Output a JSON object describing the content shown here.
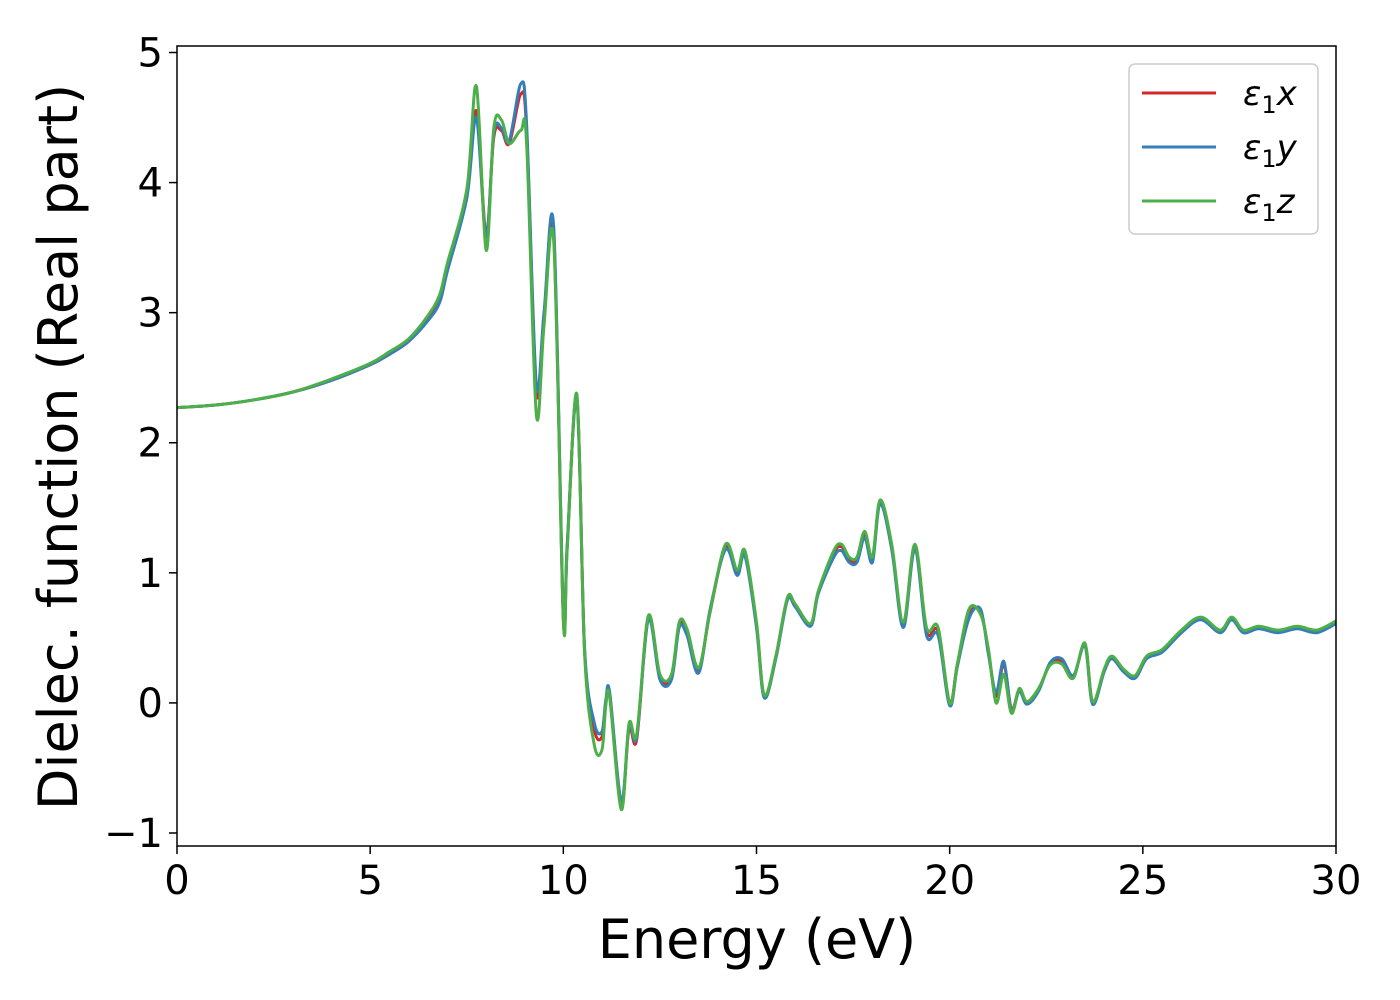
{
  "chart_data": {
    "type": "line",
    "xlabel": "Energy (eV)",
    "ylabel": "Dielec. function (Real part)",
    "xlim": [
      0,
      30
    ],
    "ylim": [
      -1.1,
      5.05
    ],
    "xticks": [
      "0",
      "5",
      "10",
      "15",
      "20",
      "25",
      "30"
    ],
    "yticks": [
      "−1",
      "0",
      "1",
      "2",
      "3",
      "4",
      "5"
    ],
    "grid": false,
    "legend_position": "top-right",
    "series": [
      {
        "name": "ε1x",
        "legend": {
          "base": "ε",
          "sub": "1",
          "var": "x"
        },
        "color": "#d62728",
        "x": [
          0,
          1,
          2,
          3,
          4,
          5,
          5.5,
          6,
          6.5,
          6.8,
          7.0,
          7.5,
          7.75,
          8.0,
          8.2,
          8.4,
          8.6,
          8.9,
          9.05,
          9.3,
          9.5,
          9.75,
          10.0,
          10.1,
          10.35,
          10.55,
          10.8,
          11.0,
          11.1,
          11.2,
          11.5,
          11.7,
          11.9,
          12.2,
          12.5,
          12.8,
          13.0,
          13.2,
          13.5,
          13.8,
          14.2,
          14.5,
          14.7,
          15.0,
          15.2,
          15.5,
          15.8,
          16.0,
          16.4,
          16.6,
          17.0,
          17.2,
          17.4,
          17.6,
          17.8,
          18.0,
          18.2,
          18.5,
          18.8,
          19.1,
          19.4,
          19.7,
          20.0,
          20.2,
          20.5,
          20.8,
          21.0,
          21.2,
          21.4,
          21.6,
          21.8,
          22.0,
          22.3,
          22.6,
          22.9,
          23.2,
          23.5,
          23.7,
          24.0,
          24.2,
          24.5,
          24.8,
          25.1,
          25.5,
          26.0,
          26.5,
          27.0,
          27.3,
          27.6,
          28.0,
          28.5,
          29.0,
          29.5,
          30.0
        ],
        "y": [
          2.27,
          2.29,
          2.33,
          2.39,
          2.48,
          2.6,
          2.68,
          2.78,
          2.95,
          3.1,
          3.34,
          3.9,
          4.55,
          3.6,
          4.35,
          4.4,
          4.3,
          4.68,
          4.4,
          2.4,
          2.95,
          3.6,
          0.65,
          1.2,
          2.35,
          0.4,
          -0.2,
          -0.26,
          0.0,
          0.06,
          -0.78,
          -0.2,
          -0.28,
          0.66,
          0.2,
          0.2,
          0.6,
          0.55,
          0.25,
          0.7,
          1.2,
          1.0,
          1.15,
          0.6,
          0.05,
          0.35,
          0.8,
          0.75,
          0.6,
          0.85,
          1.15,
          1.2,
          1.1,
          1.1,
          1.3,
          1.1,
          1.55,
          1.2,
          0.6,
          1.2,
          0.55,
          0.55,
          0.0,
          0.3,
          0.68,
          0.7,
          0.4,
          0.05,
          0.3,
          -0.05,
          0.1,
          0.0,
          0.1,
          0.3,
          0.32,
          0.2,
          0.45,
          0.0,
          0.25,
          0.35,
          0.25,
          0.2,
          0.35,
          0.4,
          0.55,
          0.65,
          0.55,
          0.65,
          0.55,
          0.58,
          0.55,
          0.58,
          0.55,
          0.62
        ]
      },
      {
        "name": "ε1y",
        "legend": {
          "base": "ε",
          "sub": "1",
          "var": "y"
        },
        "color": "#377eb8",
        "x": [
          0,
          1,
          2,
          3,
          4,
          5,
          5.5,
          6,
          6.5,
          6.8,
          7.0,
          7.5,
          7.75,
          8.0,
          8.2,
          8.4,
          8.6,
          8.9,
          9.05,
          9.3,
          9.5,
          9.75,
          10.0,
          10.1,
          10.35,
          10.55,
          10.8,
          11.0,
          11.1,
          11.2,
          11.5,
          11.7,
          11.9,
          12.2,
          12.5,
          12.8,
          13.0,
          13.2,
          13.5,
          13.8,
          14.2,
          14.5,
          14.7,
          15.0,
          15.2,
          15.5,
          15.8,
          16.0,
          16.4,
          16.6,
          17.0,
          17.2,
          17.4,
          17.6,
          17.8,
          18.0,
          18.2,
          18.5,
          18.8,
          19.1,
          19.4,
          19.7,
          20.0,
          20.2,
          20.5,
          20.8,
          21.0,
          21.2,
          21.4,
          21.6,
          21.8,
          22.0,
          22.3,
          22.6,
          22.9,
          23.2,
          23.5,
          23.7,
          24.0,
          24.2,
          24.5,
          24.8,
          25.1,
          25.5,
          26.0,
          26.5,
          27.0,
          27.3,
          27.6,
          28.0,
          28.5,
          29.0,
          29.5,
          30.0
        ],
        "y": [
          2.27,
          2.29,
          2.33,
          2.39,
          2.48,
          2.6,
          2.68,
          2.78,
          2.94,
          3.08,
          3.32,
          3.88,
          4.5,
          3.58,
          4.38,
          4.42,
          4.32,
          4.76,
          4.45,
          2.45,
          3.0,
          3.66,
          0.68,
          1.22,
          2.33,
          0.42,
          -0.15,
          -0.22,
          0.02,
          0.08,
          -0.76,
          -0.18,
          -0.26,
          0.64,
          0.18,
          0.18,
          0.58,
          0.52,
          0.23,
          0.72,
          1.18,
          0.98,
          1.13,
          0.58,
          0.04,
          0.34,
          0.79,
          0.74,
          0.59,
          0.84,
          1.12,
          1.17,
          1.08,
          1.08,
          1.27,
          1.08,
          1.53,
          1.18,
          0.58,
          1.18,
          0.52,
          0.52,
          -0.02,
          0.28,
          0.65,
          0.72,
          0.38,
          0.08,
          0.32,
          -0.06,
          0.09,
          -0.01,
          0.09,
          0.31,
          0.34,
          0.21,
          0.44,
          -0.01,
          0.24,
          0.34,
          0.24,
          0.19,
          0.34,
          0.39,
          0.54,
          0.64,
          0.54,
          0.64,
          0.54,
          0.57,
          0.54,
          0.57,
          0.54,
          0.61
        ]
      },
      {
        "name": "ε1z",
        "legend": {
          "base": "ε",
          "sub": "1",
          "var": "z"
        },
        "color": "#4daf4a",
        "x": [
          0,
          1,
          2,
          3,
          4,
          5,
          5.5,
          6,
          6.5,
          6.8,
          7.0,
          7.5,
          7.75,
          8.0,
          8.2,
          8.4,
          8.6,
          8.9,
          9.05,
          9.3,
          9.5,
          9.75,
          10.0,
          10.1,
          10.35,
          10.55,
          10.8,
          11.0,
          11.1,
          11.2,
          11.5,
          11.7,
          11.9,
          12.2,
          12.5,
          12.8,
          13.0,
          13.2,
          13.5,
          13.8,
          14.2,
          14.5,
          14.7,
          15.0,
          15.2,
          15.5,
          15.8,
          16.0,
          16.4,
          16.6,
          17.0,
          17.2,
          17.4,
          17.6,
          17.8,
          18.0,
          18.2,
          18.5,
          18.8,
          19.1,
          19.4,
          19.7,
          20.0,
          20.2,
          20.5,
          20.8,
          21.0,
          21.2,
          21.4,
          21.6,
          21.8,
          22.0,
          22.3,
          22.6,
          22.9,
          23.2,
          23.5,
          23.7,
          24.0,
          24.2,
          24.5,
          24.8,
          25.1,
          25.5,
          26.0,
          26.5,
          27.0,
          27.3,
          27.6,
          28.0,
          28.5,
          29.0,
          29.5,
          30.0
        ],
        "y": [
          2.27,
          2.29,
          2.33,
          2.39,
          2.49,
          2.61,
          2.7,
          2.8,
          2.98,
          3.14,
          3.38,
          3.95,
          4.74,
          3.48,
          4.42,
          4.48,
          4.3,
          4.4,
          4.3,
          2.22,
          2.9,
          3.55,
          0.64,
          1.18,
          2.37,
          0.38,
          -0.32,
          -0.36,
          -0.02,
          0.04,
          -0.82,
          -0.16,
          -0.24,
          0.67,
          0.22,
          0.22,
          0.62,
          0.57,
          0.27,
          0.7,
          1.22,
          1.02,
          1.17,
          0.62,
          0.06,
          0.36,
          0.81,
          0.76,
          0.61,
          0.86,
          1.17,
          1.22,
          1.12,
          1.12,
          1.32,
          1.12,
          1.56,
          1.22,
          0.62,
          1.22,
          0.58,
          0.58,
          0.0,
          0.3,
          0.72,
          0.68,
          0.42,
          0.0,
          0.22,
          -0.08,
          0.11,
          0.01,
          0.11,
          0.29,
          0.3,
          0.19,
          0.46,
          0.01,
          0.26,
          0.36,
          0.26,
          0.21,
          0.36,
          0.41,
          0.56,
          0.66,
          0.56,
          0.66,
          0.56,
          0.59,
          0.56,
          0.59,
          0.56,
          0.63
        ]
      }
    ]
  }
}
